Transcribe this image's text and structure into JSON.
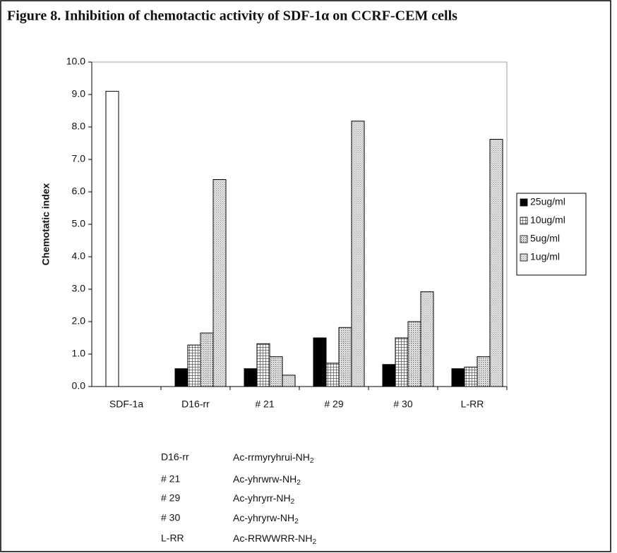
{
  "chart_data": {
    "type": "bar",
    "title": "Figure 8.  Inhibition of chemotactic activity of SDF-1α on CCRF-CEM cells",
    "y_label": "Chemotatic index",
    "categories": [
      "SDF-1a",
      "D16-rr",
      "# 21",
      "# 29",
      "# 30",
      "L-RR"
    ],
    "series": [
      {
        "color": "#ffffff",
        "values": [
          9.1,
          null,
          null,
          null,
          null,
          null
        ]
      },
      {
        "name": "25ug/ml",
        "color": "#000000",
        "values": [
          null,
          0.55,
          0.55,
          1.5,
          0.68,
          0.55
        ]
      },
      {
        "name": "10ug/ml",
        "color": "#333333",
        "values": [
          null,
          1.28,
          1.32,
          0.72,
          1.5,
          0.6
        ]
      },
      {
        "name": "5ug/ml",
        "color": "#666666",
        "values": [
          null,
          1.65,
          0.92,
          1.82,
          2.0,
          0.92
        ]
      },
      {
        "name": "1ug/ml",
        "color": "#999999",
        "values": [
          null,
          6.38,
          0.35,
          8.18,
          2.92,
          7.62
        ]
      }
    ],
    "ylim": [
      0,
      10
    ],
    "yticks": [
      {
        "value": 0,
        "label": "0.0"
      },
      {
        "value": 1,
        "label": "1.0"
      },
      {
        "value": 2,
        "label": "2.0"
      },
      {
        "value": 3,
        "label": "3.0"
      },
      {
        "value": 4,
        "label": "4.0"
      },
      {
        "value": 5,
        "label": "5.0"
      },
      {
        "value": 6,
        "label": "6.0"
      },
      {
        "value": 7,
        "label": "7.0"
      },
      {
        "value": 8,
        "label": "8.0"
      },
      {
        "value": 9,
        "label": "9.0"
      },
      {
        "value": 10,
        "label": "10.0"
      }
    ],
    "legend": "right",
    "key": [
      {
        "code": "D16-rr",
        "sequence": "Ac-rrmyryhrui-NH",
        "subscript": "2"
      },
      {
        "code": "# 21",
        "sequence": "Ac-yhrwrw-NH",
        "subscript": "2"
      },
      {
        "code": "# 29",
        "sequence": "Ac-yhryrr-NH",
        "subscript": "2"
      },
      {
        "code": "# 30",
        "sequence": "Ac-yhryrw-NH",
        "subscript": "2"
      },
      {
        "code": "L-RR",
        "sequence": "Ac-RRWWRR-NH",
        "subscript": "2"
      }
    ]
  }
}
